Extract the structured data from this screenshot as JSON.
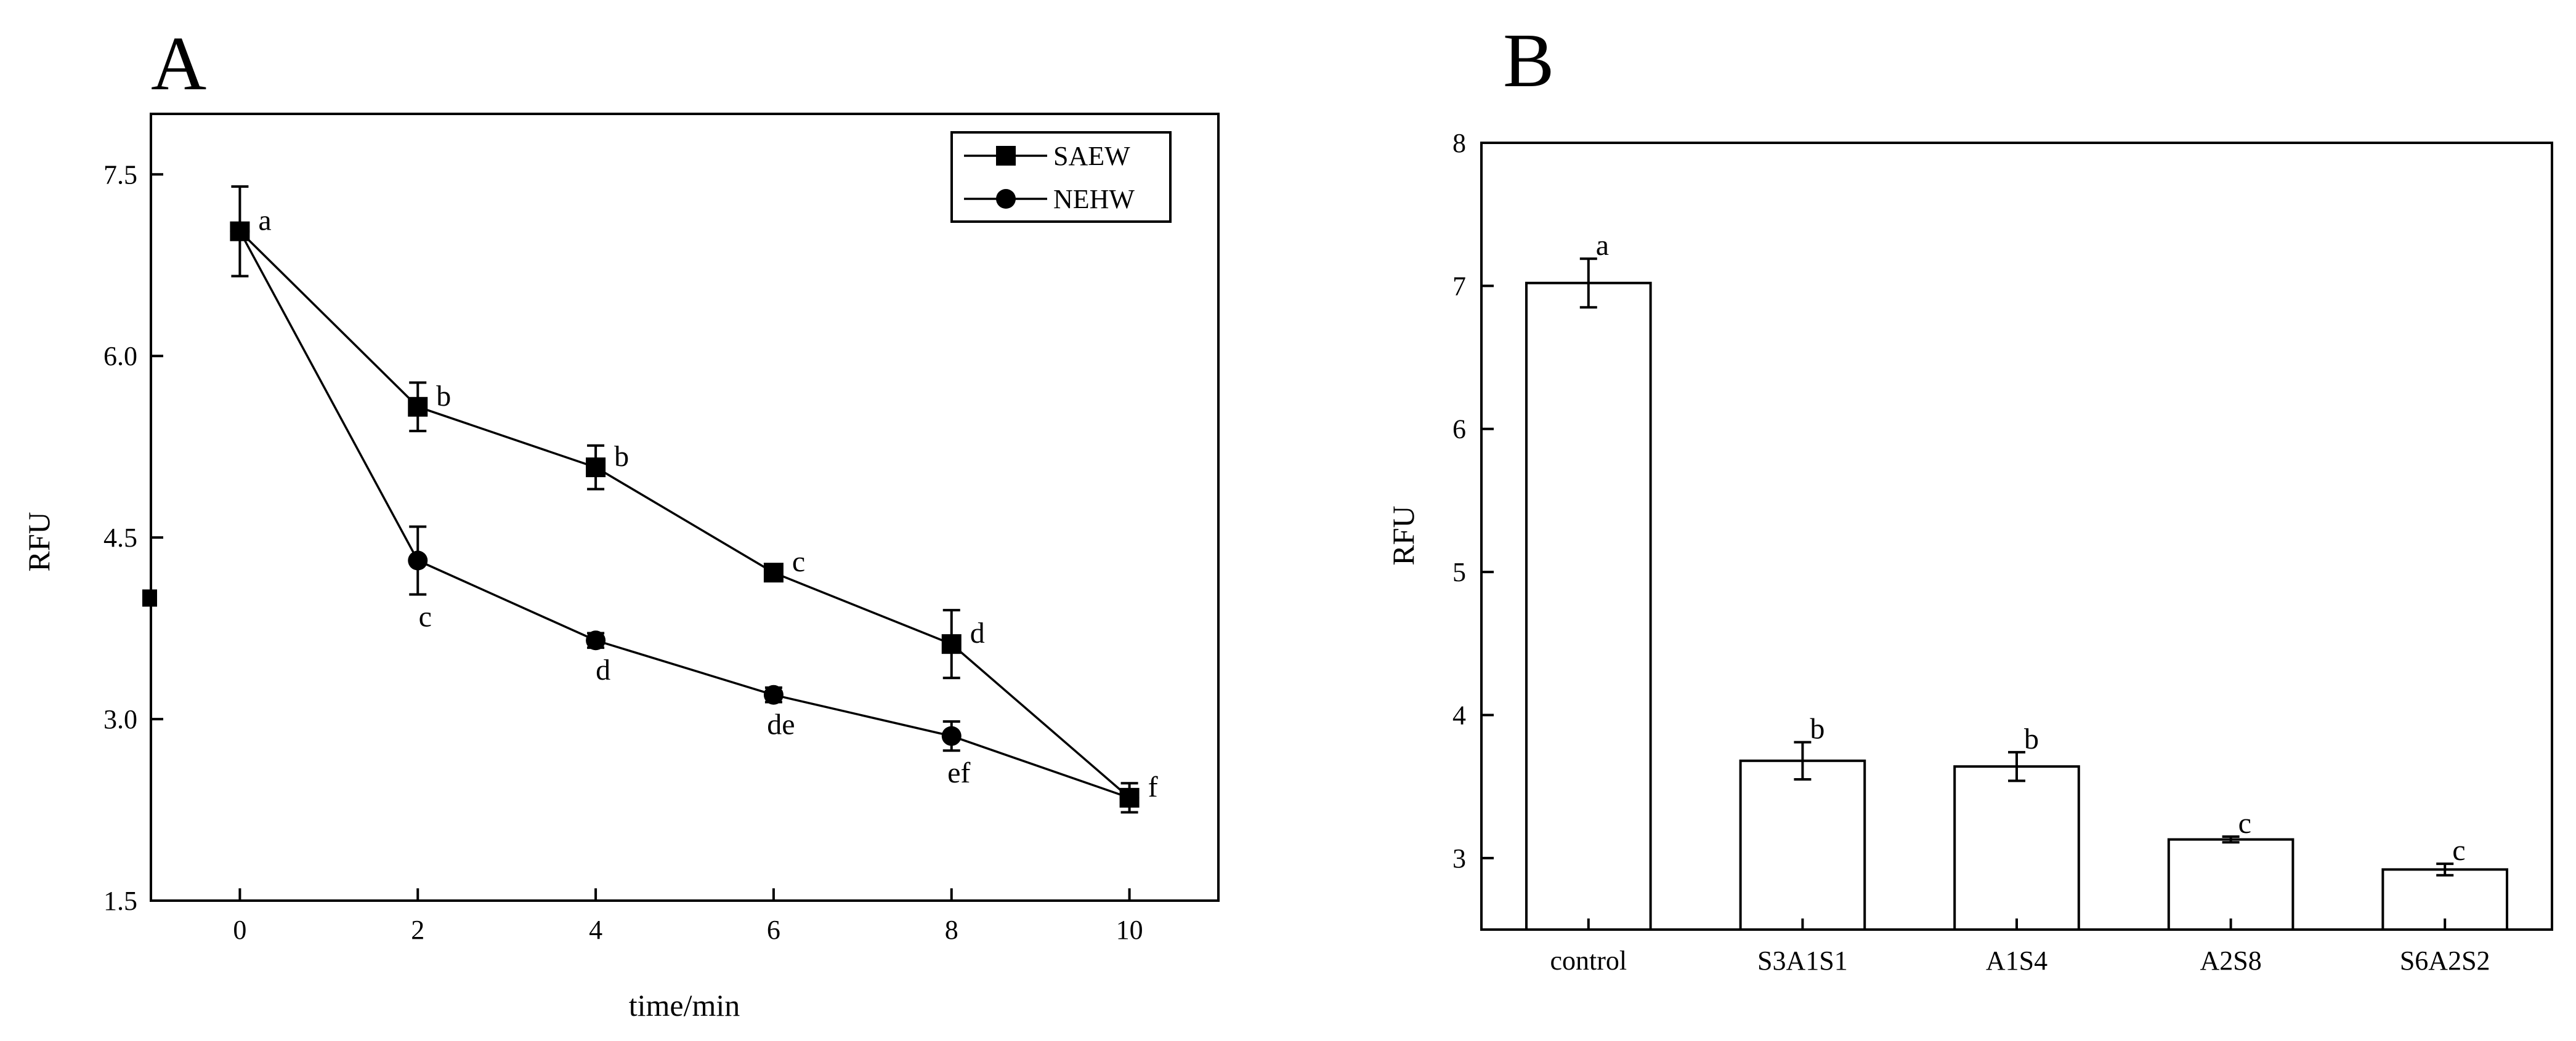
{
  "chart_data": [
    {
      "panel": "A",
      "type": "line",
      "xlabel": "time/min",
      "ylabel": "RFU",
      "xlim": [
        -1,
        11
      ],
      "ylim": [
        1.5,
        8.0
      ],
      "xticks": [
        0,
        2,
        4,
        6,
        8,
        10
      ],
      "yticks": [
        1.5,
        3.0,
        4.5,
        6.0,
        7.5
      ],
      "ytick_labels": [
        "1.5",
        "3.0",
        "4.5",
        "6.0",
        "7.5"
      ],
      "grid": false,
      "legend_position": "top-right",
      "series": [
        {
          "name": "SAEW",
          "marker": "square",
          "x": [
            0,
            2,
            4,
            6,
            8,
            10
          ],
          "values": [
            7.03,
            5.58,
            5.08,
            4.21,
            3.62,
            2.35
          ],
          "errors": [
            0.37,
            0.2,
            0.18,
            0.06,
            0.28,
            0.12
          ],
          "labels": [
            "a",
            "b",
            "b",
            "c",
            "d",
            "f"
          ],
          "label_pos": [
            "right",
            "right",
            "right",
            "right",
            "right",
            "right"
          ]
        },
        {
          "name": "NEHW",
          "marker": "circle",
          "x": [
            0,
            2,
            4,
            6,
            8,
            10
          ],
          "values": [
            7.03,
            4.31,
            3.65,
            3.2,
            2.86,
            2.35
          ],
          "errors": [
            0.0,
            0.28,
            0.06,
            0.06,
            0.12,
            0.0
          ],
          "labels": [
            "",
            "c",
            "d",
            "de",
            "ef",
            ""
          ],
          "label_pos": [
            "",
            "below",
            "below",
            "below",
            "below",
            ""
          ]
        }
      ],
      "stray_marker": {
        "x": -1,
        "y": 4.0
      }
    },
    {
      "panel": "B",
      "type": "bar",
      "xlabel": "",
      "ylabel": "RFU",
      "ylim": [
        2.5,
        8
      ],
      "yticks": [
        3,
        4,
        5,
        6,
        7,
        8
      ],
      "ytick_labels": [
        "3",
        "4",
        "5",
        "6",
        "7",
        "8"
      ],
      "grid": false,
      "categories": [
        "control",
        "S3A1S1",
        "A1S4",
        "A2S8",
        "S6A2S2"
      ],
      "values": [
        7.02,
        3.68,
        3.64,
        3.13,
        2.92
      ],
      "errors": [
        0.17,
        0.13,
        0.1,
        0.02,
        0.04
      ],
      "labels": [
        "a",
        "b",
        "b",
        "c",
        "c"
      ]
    }
  ]
}
